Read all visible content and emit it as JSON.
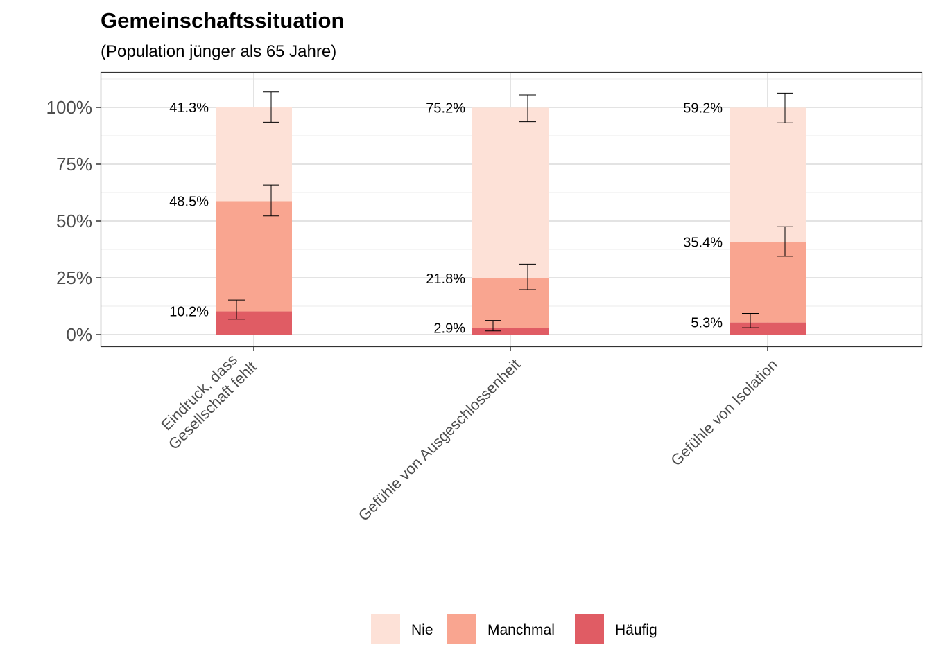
{
  "chart_data": {
    "type": "bar",
    "stacked": true,
    "title": "Gemeinschaftssituation",
    "subtitle": "(Population jünger als 65 Jahre)",
    "xlabel": "",
    "ylabel": "",
    "ylim": [
      -0.05,
      1.15
    ],
    "y_ticks": [
      0,
      0.25,
      0.5,
      0.75,
      1.0
    ],
    "y_tick_labels": [
      "0%",
      "25%",
      "50%",
      "75%",
      "100%"
    ],
    "grid": true,
    "legend_position": "bottom",
    "categories": [
      [
        "Eindruck, dass",
        "Gesellschaft fehlt"
      ],
      [
        "Gefühle von Ausgeschlossenheit"
      ],
      [
        "Gefühle von Isolation"
      ]
    ],
    "series": [
      {
        "name": "Häufig",
        "color": "#e05c64",
        "values": [
          0.102,
          0.029,
          0.053
        ],
        "labels": [
          "10.2%",
          "2.9%",
          "5.3%"
        ],
        "error_bars": [
          [
            0.068,
            0.152
          ],
          [
            0.016,
            0.062
          ],
          [
            0.03,
            0.093
          ]
        ]
      },
      {
        "name": "Manchmal",
        "color": "#f9a590",
        "values": [
          0.485,
          0.218,
          0.354
        ],
        "labels": [
          "48.5%",
          "21.8%",
          "35.4%"
        ],
        "error_bars": [
          [
            0.522,
            0.658
          ],
          [
            0.198,
            0.31
          ],
          [
            0.345,
            0.475
          ]
        ]
      },
      {
        "name": "Nie",
        "color": "#fde1d7",
        "values": [
          0.413,
          0.752,
          0.592
        ],
        "labels": [
          "41.3%",
          "75.2%",
          "59.2%"
        ],
        "error_bars": [
          [
            0.935,
            1.068
          ],
          [
            0.937,
            1.055
          ],
          [
            0.932,
            1.063
          ]
        ]
      }
    ],
    "legend": [
      {
        "name": "Nie",
        "color": "#fde1d7"
      },
      {
        "name": "Manchmal",
        "color": "#f9a590"
      },
      {
        "name": "Häufig",
        "color": "#e05c64"
      }
    ]
  }
}
